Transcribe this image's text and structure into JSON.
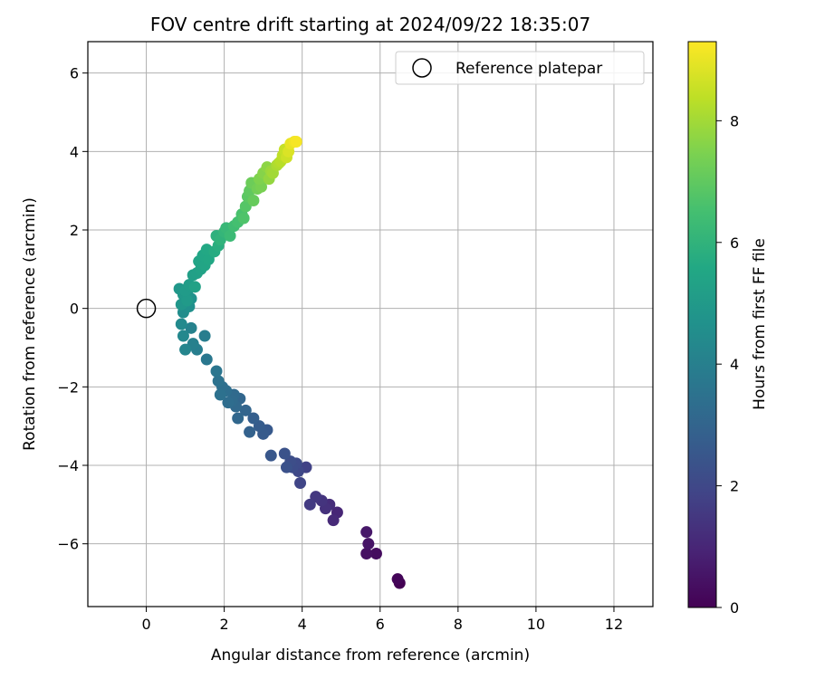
{
  "chart_data": {
    "type": "scatter",
    "title": "FOV centre drift starting at 2024/09/22 18:35:07",
    "xlabel": "Angular distance from reference (arcmin)",
    "ylabel": "Rotation from reference (arcmin)",
    "xlim": [
      -1.5,
      13
    ],
    "ylim": [
      -7.6,
      6.8
    ],
    "xticks": [
      0,
      2,
      4,
      6,
      8,
      10,
      12
    ],
    "yticks": [
      -6,
      -4,
      -2,
      0,
      2,
      4,
      6
    ],
    "grid": true,
    "legend": {
      "position": "top-right",
      "entries": [
        "Reference platepar"
      ]
    },
    "reference_point": {
      "name": "Reference platepar",
      "x": 0,
      "y": 0
    },
    "colorbar": {
      "label": "Hours from first FF file",
      "colormap": "viridis",
      "range": [
        0,
        9.3
      ],
      "ticks": [
        0,
        2,
        4,
        6,
        8
      ]
    },
    "series": [
      {
        "x": [
          6.5,
          6.45,
          5.9,
          5.65,
          5.7,
          5.65,
          4.9,
          4.8,
          4.7,
          4.6,
          4.5,
          4.35,
          4.2,
          4.1,
          3.95,
          3.9,
          3.85,
          3.75,
          3.7,
          3.6,
          3.55,
          3.2,
          3.1,
          3.0,
          2.9,
          2.75,
          2.65,
          2.55,
          2.4,
          2.35,
          2.3,
          2.25,
          2.2,
          2.1,
          2.05,
          1.95,
          1.9,
          1.85,
          1.8,
          1.55,
          1.5,
          1.3,
          1.2,
          1.15,
          1.0,
          0.95,
          0.9,
          0.95,
          1.1,
          1.15,
          1.05,
          0.9,
          0.85,
          0.95,
          1.05,
          1.0,
          1.1,
          1.2,
          1.3,
          1.25,
          1.4,
          1.35,
          1.5,
          1.45,
          1.6,
          1.55,
          1.75,
          1.85,
          1.8,
          1.9,
          2.0,
          2.05,
          2.15,
          2.25,
          2.35,
          2.45,
          2.5,
          2.55,
          2.6,
          2.65,
          2.75,
          2.7,
          2.85,
          2.95,
          2.9,
          3.0,
          3.1,
          3.15,
          3.2,
          3.25,
          3.35,
          3.4,
          3.45,
          3.5,
          3.55,
          3.6,
          3.65,
          3.7,
          3.8,
          3.85
        ],
        "y": [
          -7.0,
          -6.9,
          -6.25,
          -6.25,
          -6.0,
          -5.7,
          -5.2,
          -5.4,
          -5.0,
          -5.1,
          -4.9,
          -4.8,
          -5.0,
          -4.05,
          -4.45,
          -4.15,
          -3.95,
          -4.05,
          -3.9,
          -4.05,
          -3.7,
          -3.75,
          -3.1,
          -3.2,
          -3.0,
          -2.8,
          -3.15,
          -2.6,
          -2.3,
          -2.8,
          -2.5,
          -2.2,
          -2.35,
          -2.4,
          -2.1,
          -2.0,
          -2.2,
          -1.85,
          -1.6,
          -1.3,
          -0.7,
          -1.05,
          -0.9,
          -0.5,
          -1.05,
          -0.7,
          -0.4,
          -0.1,
          0.05,
          0.25,
          0.4,
          0.1,
          0.5,
          0.35,
          0.2,
          0.45,
          0.6,
          0.85,
          0.9,
          0.55,
          1.0,
          1.2,
          1.1,
          1.35,
          1.25,
          1.5,
          1.45,
          1.6,
          1.85,
          1.75,
          1.95,
          2.05,
          1.85,
          2.1,
          2.2,
          2.4,
          2.3,
          2.6,
          2.85,
          3.0,
          2.75,
          3.2,
          3.05,
          3.1,
          3.3,
          3.45,
          3.6,
          3.3,
          3.5,
          3.45,
          3.65,
          3.7,
          3.75,
          3.9,
          4.05,
          3.85,
          4.0,
          4.2,
          4.25,
          4.25
        ],
        "c": [
          0.0,
          0.1,
          0.3,
          0.4,
          0.5,
          0.6,
          1.0,
          1.1,
          1.2,
          1.3,
          1.4,
          1.5,
          1.6,
          1.8,
          1.9,
          2.0,
          2.1,
          2.15,
          2.2,
          2.3,
          2.35,
          2.5,
          2.6,
          2.65,
          2.7,
          2.8,
          2.9,
          3.0,
          3.05,
          3.1,
          3.15,
          3.2,
          3.25,
          3.3,
          3.35,
          3.4,
          3.45,
          3.5,
          3.6,
          3.7,
          3.9,
          3.95,
          4.0,
          4.1,
          4.2,
          4.3,
          4.4,
          4.5,
          4.6,
          4.7,
          4.8,
          4.85,
          4.9,
          4.95,
          5.0,
          5.05,
          5.1,
          5.2,
          5.25,
          5.3,
          5.35,
          5.4,
          5.45,
          5.5,
          5.55,
          5.6,
          5.7,
          5.8,
          5.9,
          6.0,
          6.1,
          6.2,
          6.3,
          6.4,
          6.5,
          6.6,
          6.7,
          6.8,
          6.9,
          7.0,
          7.1,
          7.2,
          7.3,
          7.4,
          7.5,
          7.6,
          7.7,
          7.8,
          7.9,
          8.0,
          8.1,
          8.2,
          8.3,
          8.4,
          8.5,
          8.6,
          8.8,
          9.0,
          9.1,
          9.2
        ]
      }
    ]
  }
}
